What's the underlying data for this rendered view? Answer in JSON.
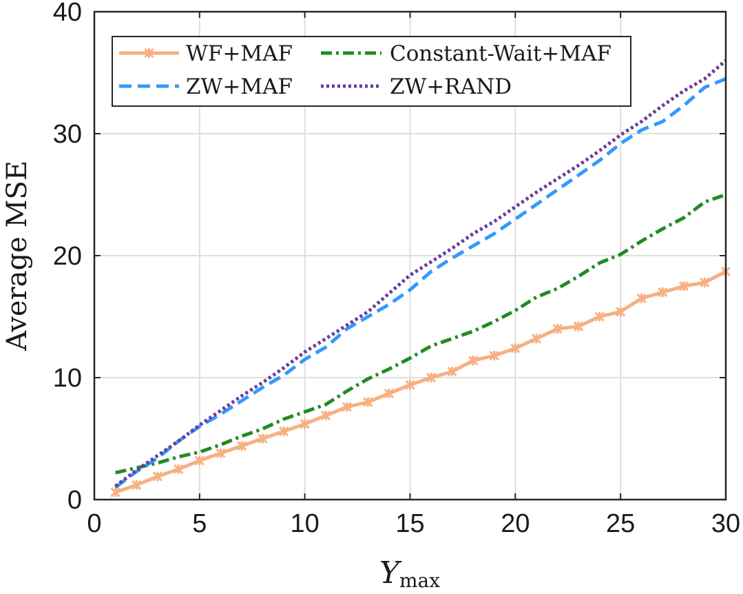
{
  "chart_data": {
    "type": "line",
    "title": "",
    "xlabel": "Y",
    "xlabel_subscript": "max",
    "ylabel": "Average MSE",
    "xlim": [
      0,
      30
    ],
    "ylim": [
      0,
      40
    ],
    "xticks": [
      0,
      5,
      10,
      15,
      20,
      25,
      30
    ],
    "yticks": [
      0,
      10,
      20,
      30,
      40
    ],
    "xtick_labels": [
      "0",
      "5",
      "10",
      "15",
      "20",
      "25",
      "30"
    ],
    "ytick_labels": [
      "0",
      "10",
      "20",
      "30",
      "40"
    ],
    "grid": true,
    "legend_location": "top-left",
    "x": [
      1,
      2,
      3,
      4,
      5,
      6,
      7,
      8,
      9,
      10,
      11,
      12,
      13,
      14,
      15,
      16,
      17,
      18,
      19,
      20,
      21,
      22,
      23,
      24,
      25,
      26,
      27,
      28,
      29,
      30
    ],
    "series": [
      {
        "name": "WF+MAF",
        "color": "#F7B081",
        "style": "solid-marker",
        "values": [
          0.6,
          1.2,
          1.9,
          2.5,
          3.2,
          3.8,
          4.4,
          5.0,
          5.6,
          6.2,
          6.9,
          7.6,
          8.0,
          8.7,
          9.4,
          10.0,
          10.5,
          11.4,
          11.8,
          12.4,
          13.2,
          14.0,
          14.2,
          15.0,
          15.4,
          16.5,
          17.0,
          17.5,
          17.8,
          18.7
        ]
      },
      {
        "name": "Constant-Wait+MAF",
        "color": "#228B22",
        "style": "dashdot",
        "values": [
          2.2,
          2.6,
          3.0,
          3.5,
          3.9,
          4.5,
          5.2,
          5.8,
          6.6,
          7.2,
          7.8,
          8.9,
          9.9,
          10.7,
          11.6,
          12.6,
          13.2,
          13.8,
          14.6,
          15.5,
          16.6,
          17.3,
          18.3,
          19.4,
          20.1,
          21.2,
          22.2,
          23.1,
          24.4,
          25.0
        ]
      },
      {
        "name": "ZW+MAF",
        "color": "#3399FF",
        "style": "dashed",
        "values": [
          1.0,
          2.3,
          3.4,
          4.8,
          6.0,
          7.0,
          8.1,
          9.2,
          10.2,
          11.5,
          12.5,
          14.0,
          15.0,
          16.0,
          17.2,
          18.7,
          19.8,
          20.8,
          21.8,
          23.0,
          24.2,
          25.4,
          26.6,
          27.8,
          29.2,
          30.3,
          31.0,
          32.3,
          33.8,
          34.5
        ]
      },
      {
        "name": "ZW+RAND",
        "color": "#6A3D9A",
        "style": "dotted",
        "values": [
          1.1,
          2.4,
          3.6,
          4.8,
          6.1,
          7.3,
          8.5,
          9.6,
          10.8,
          12.1,
          13.2,
          14.3,
          15.4,
          16.9,
          18.4,
          19.5,
          20.6,
          21.8,
          22.8,
          24.0,
          25.2,
          26.3,
          27.4,
          28.6,
          29.9,
          31.0,
          32.3,
          33.5,
          34.5,
          36.0
        ]
      }
    ],
    "legend_order": [
      "WF+MAF",
      "Constant-Wait+MAF",
      "ZW+MAF",
      "ZW+RAND"
    ]
  }
}
